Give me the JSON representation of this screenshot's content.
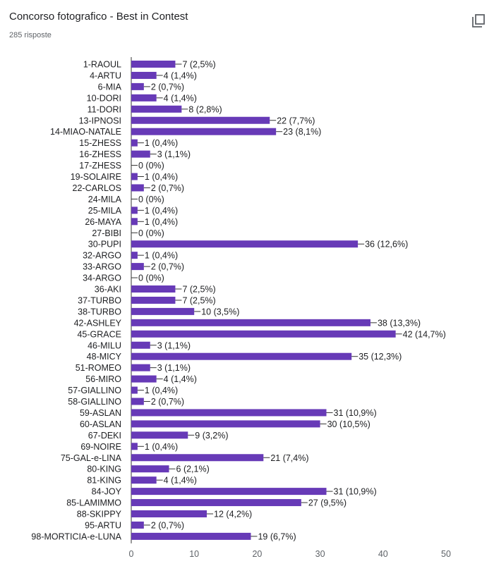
{
  "header": {
    "title": "Concorso fotografico - Best in Contest",
    "responses": "285 risposte",
    "copy_icon": "copy-icon"
  },
  "colors": {
    "bar": "#673ab7",
    "text": "#202124",
    "axis": "#5f6368"
  },
  "chart_data": {
    "type": "bar",
    "orientation": "horizontal",
    "title": "Concorso fotografico - Best in Contest",
    "xlim": [
      0,
      50
    ],
    "xticks": [
      0,
      10,
      20,
      30,
      40,
      50
    ],
    "grid": false,
    "categories": [
      "1-RAOUL",
      "4-ARTU",
      "6-MIA",
      "10-DORI",
      "11-DORI",
      "13-IPNOSI",
      "14-MIAO-NATALE",
      "15-ZHESS",
      "16-ZHESS",
      "17-ZHESS",
      "19-SOLAIRE",
      "22-CARLOS",
      "24-MILA",
      "25-MILA",
      "26-MAYA",
      "27-BIBI",
      "30-PUPI",
      "32-ARGO",
      "33-ARGO",
      "34-ARGO",
      "36-AKI",
      "37-TURBO",
      "38-TURBO",
      "42-ASHLEY",
      "45-GRACE",
      "46-MILU",
      "48-MICY",
      "51-ROMEO",
      "56-MIRO",
      "57-GIALLINO",
      "58-GIALLINO",
      "59-ASLAN",
      "60-ASLAN",
      "67-DEKI",
      "69-NOIRE",
      "75-GAL-e-LINA",
      "80-KING",
      "81-KING",
      "84-JOY",
      "85-LAMIMMO",
      "88-SKIPPY",
      "95-ARTU",
      "98-MORTICIA-e-LUNA"
    ],
    "values": [
      7,
      4,
      2,
      4,
      8,
      22,
      23,
      1,
      3,
      0,
      1,
      2,
      0,
      1,
      1,
      0,
      36,
      1,
      2,
      0,
      7,
      7,
      10,
      38,
      42,
      3,
      35,
      3,
      4,
      1,
      2,
      31,
      30,
      9,
      1,
      21,
      6,
      4,
      31,
      27,
      12,
      2,
      19
    ],
    "data_labels": [
      "7 (2,5%)",
      "4 (1,4%)",
      "2 (0,7%)",
      "4 (1,4%)",
      "8 (2,8%)",
      "22 (7,7%)",
      "23 (8,1%)",
      "1 (0,4%)",
      "3 (1,1%)",
      "0 (0%)",
      "1 (0,4%)",
      "2 (0,7%)",
      "0 (0%)",
      "1 (0,4%)",
      "1 (0,4%)",
      "0 (0%)",
      "36 (12,6%)",
      "1 (0,4%)",
      "2 (0,7%)",
      "0 (0%)",
      "7 (2,5%)",
      "7 (2,5%)",
      "10 (3,5%)",
      "38 (13,3%)",
      "42 (14,7%)",
      "3 (1,1%)",
      "35 (12,3%)",
      "3 (1,1%)",
      "4 (1,4%)",
      "1 (0,4%)",
      "2 (0,7%)",
      "31 (10,9%)",
      "30 (10,5%)",
      "9 (3,2%)",
      "1 (0,4%)",
      "21 (7,4%)",
      "6 (2,1%)",
      "4 (1,4%)",
      "31 (10,9%)",
      "27 (9,5%)",
      "12 (4,2%)",
      "2 (0,7%)",
      "19 (6,7%)"
    ]
  }
}
